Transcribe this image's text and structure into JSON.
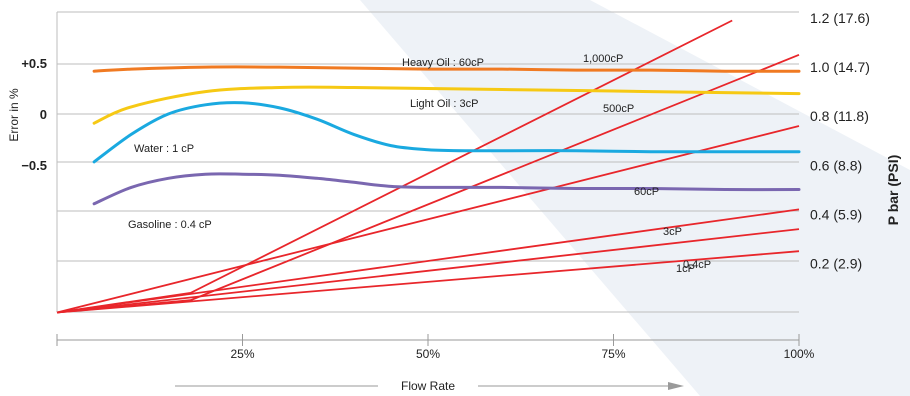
{
  "chart_data": {
    "type": "line",
    "xlabel": "Flow Rate",
    "x_ticks": [
      "25%",
      "50%",
      "75%",
      "100%"
    ],
    "x_tick_values": [
      25,
      50,
      75,
      100
    ],
    "xlim": [
      0,
      100
    ],
    "left_axis": {
      "label": "Error in %",
      "ticks": [
        "+0.5",
        "0",
        "−0.5"
      ],
      "tick_values": [
        0.5,
        0,
        -0.5
      ],
      "ylim": [
        -1.5,
        1.0
      ]
    },
    "right_axis": {
      "label": "P bar (PSI)",
      "ticks": [
        "1.2 (17.6)",
        "1.0 (14.7)",
        "0.8 (11.8)",
        "0.6 (8.8)",
        "0.4 (5.9)",
        "0.2 (2.9)"
      ],
      "tick_values": [
        1.2,
        1.0,
        0.8,
        0.6,
        0.4,
        0.2
      ],
      "ylim": [
        0,
        1.2
      ]
    },
    "grid": true,
    "error_series": [
      {
        "name": "Heavy Oil : 60cP",
        "color": "#f07a22",
        "axis": "left",
        "x": [
          5,
          10,
          20,
          30,
          40,
          50,
          60,
          70,
          80,
          90,
          100
        ],
        "y": [
          0.42,
          0.44,
          0.46,
          0.46,
          0.45,
          0.44,
          0.44,
          0.43,
          0.43,
          0.42,
          0.42
        ]
      },
      {
        "name": "Light Oil : 3cP",
        "color": "#f6c914",
        "axis": "left",
        "x": [
          5,
          10,
          20,
          30,
          40,
          50,
          60,
          70,
          80,
          90,
          100
        ],
        "y": [
          -0.09,
          0.07,
          0.22,
          0.26,
          0.26,
          0.25,
          0.24,
          0.23,
          0.22,
          0.21,
          0.2
        ]
      },
      {
        "name": "Water : 1 cP",
        "color": "#1aa9e0",
        "axis": "left",
        "x": [
          5,
          10,
          15,
          20,
          25,
          30,
          35,
          40,
          45,
          50,
          55,
          60,
          70,
          80,
          90,
          100
        ],
        "y": [
          -0.47,
          -0.2,
          0.0,
          0.09,
          0.11,
          0.06,
          -0.05,
          -0.2,
          -0.31,
          -0.35,
          -0.36,
          -0.36,
          -0.36,
          -0.37,
          -0.37,
          -0.37
        ]
      },
      {
        "name": "Gasoline : 0.4 cP",
        "color": "#7a67b0",
        "axis": "left",
        "x": [
          5,
          10,
          15,
          20,
          25,
          30,
          35,
          40,
          45,
          50,
          60,
          70,
          80,
          90,
          100
        ],
        "y": [
          -0.88,
          -0.72,
          -0.63,
          -0.59,
          -0.59,
          -0.6,
          -0.63,
          -0.67,
          -0.71,
          -0.72,
          -0.72,
          -0.73,
          -0.73,
          -0.74,
          -0.74
        ]
      }
    ],
    "pressure_series": [
      {
        "name": "1,000cP",
        "color": "#e8262b",
        "axis": "right",
        "x": [
          0,
          18,
          91
        ],
        "y": [
          0,
          0.08,
          1.19
        ]
      },
      {
        "name": "500cP",
        "color": "#e8262b",
        "axis": "right",
        "x": [
          0,
          18,
          100
        ],
        "y": [
          0,
          0.05,
          1.05
        ]
      },
      {
        "name": "60cP",
        "color": "#e8262b",
        "axis": "right",
        "x": [
          0,
          100
        ],
        "y": [
          0,
          0.76
        ]
      },
      {
        "name": "3cP",
        "color": "#e8262b",
        "axis": "right",
        "x": [
          0,
          100
        ],
        "y": [
          0,
          0.42
        ]
      },
      {
        "name": "1cP",
        "color": "#e8262b",
        "axis": "right",
        "x": [
          0,
          100
        ],
        "y": [
          0,
          0.34
        ]
      },
      {
        "name": "0.4cP",
        "color": "#e8262b",
        "axis": "right",
        "x": [
          0,
          100
        ],
        "y": [
          0,
          0.25
        ]
      }
    ],
    "colors": {
      "grid": "#bdbdbd",
      "axis": "#9a9a9a",
      "text": "#222222",
      "watermark": "#e9eef5"
    }
  }
}
